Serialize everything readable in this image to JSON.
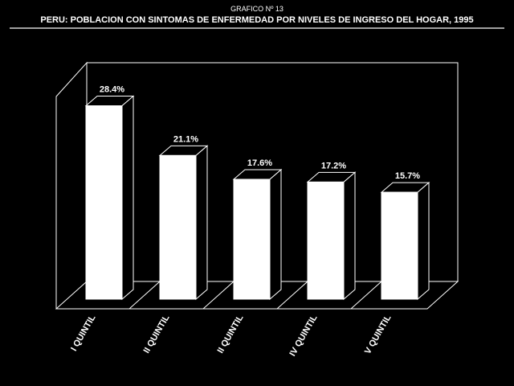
{
  "header": {
    "supertitle": "GRAFICO Nº 13",
    "title": "PERU: POBLACION CON SINTOMAS DE ENFERMEDAD POR NIVELES DE INGRESO DEL HOGAR, 1995"
  },
  "chart_data": {
    "type": "bar",
    "categories": [
      "I QUINTIL",
      "II QUINTIL",
      "II QUINTIL",
      "IV QUINTIL",
      "V QUINTIL"
    ],
    "values": [
      28.4,
      21.1,
      17.6,
      17.2,
      15.7
    ],
    "data_labels": [
      "28.4%",
      "21.1%",
      "17.6%",
      "17.2%",
      "15.7%"
    ],
    "title": "PERU: POBLACION CON SINTOMAS DE ENFERMEDAD POR NIVELES DE INGRESO DEL HOGAR, 1995",
    "xlabel": "",
    "ylabel": "",
    "ylim": [
      0,
      30
    ],
    "grid": false,
    "three_d": true,
    "colors": {
      "background": "#000000",
      "bar": "#ffffff",
      "lines": "#ffffff",
      "text": "#ffffff"
    }
  }
}
